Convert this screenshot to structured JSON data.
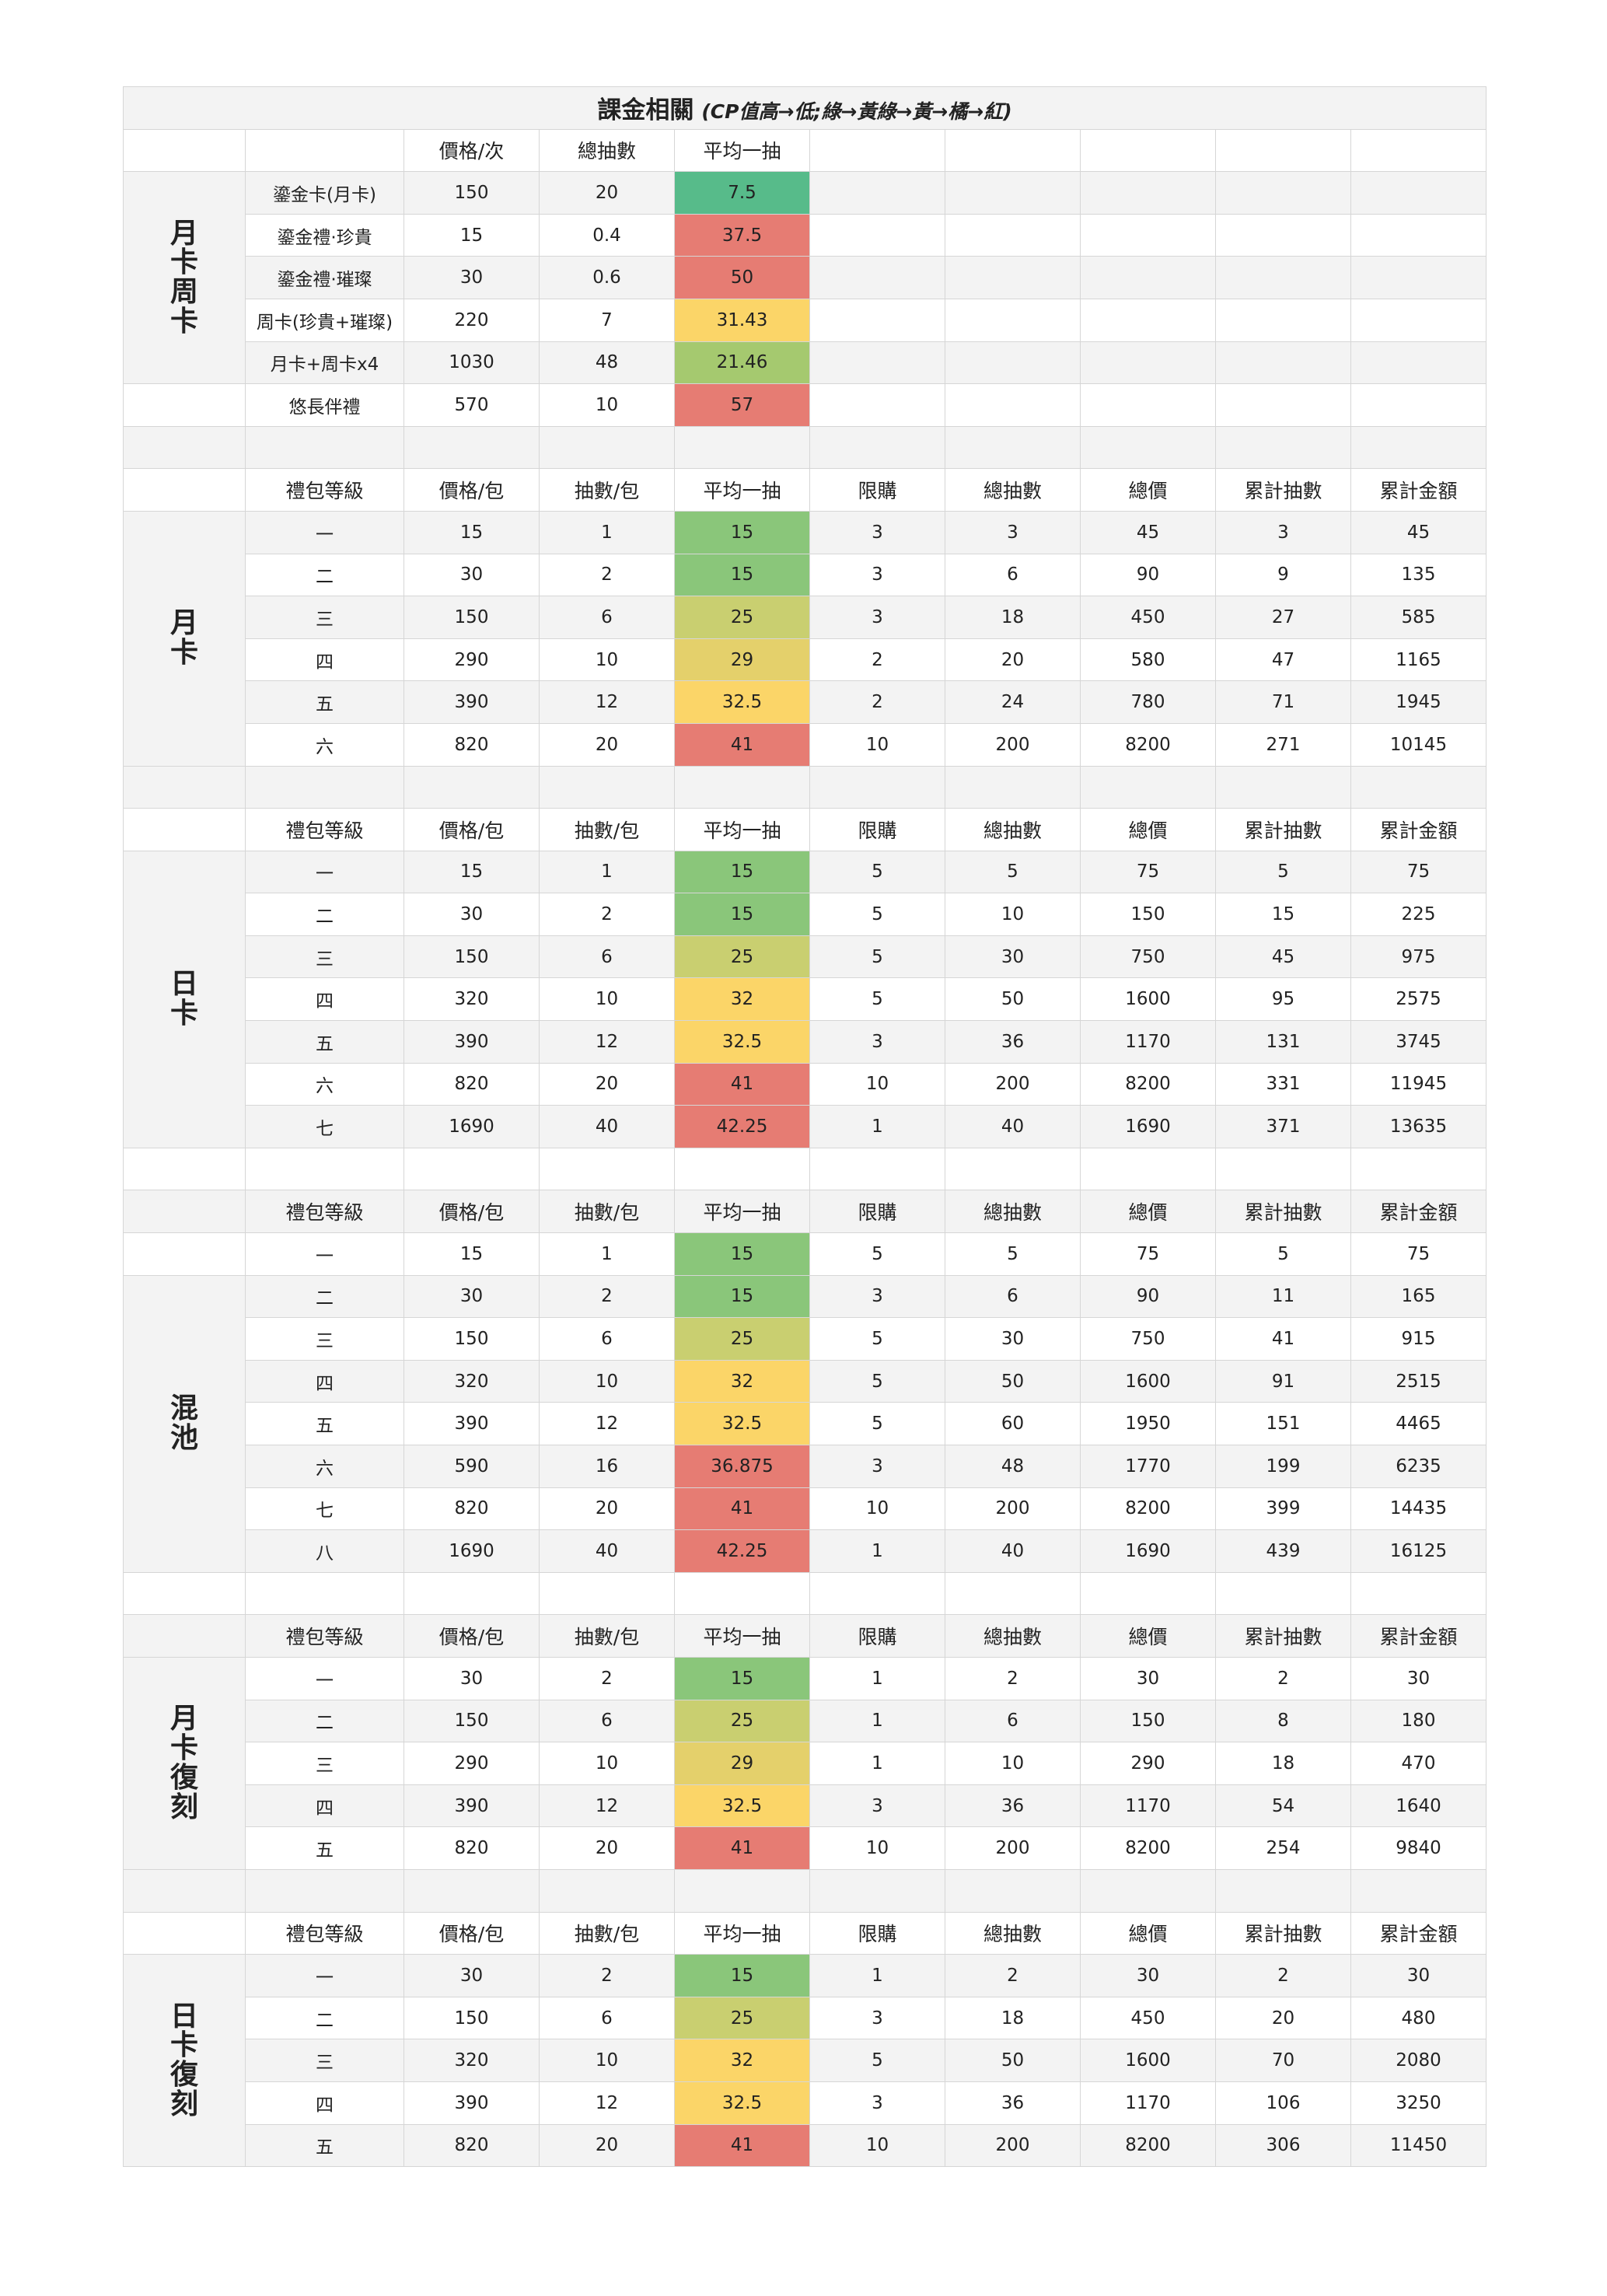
{
  "title": "課金相關",
  "subtitle": "(CP值高→低;綠→黃綠→黃→橘→紅)",
  "colors": {
    "green": "#57bb8a",
    "light_green": "#8ac67a",
    "yellow_green": "#a5c96f",
    "lime": "#c9cf70",
    "mustard": "#e4d06b",
    "yellow": "#fbd568",
    "orange": "#f3c46b",
    "red": "#e67c73",
    "stripe": "#f3f3f3",
    "grid": "#d6d6d6"
  },
  "monthly_header": [
    "",
    "價格/次",
    "總抽數",
    "平均一抽"
  ],
  "monthly_label": "月卡周卡",
  "monthly_rows": [
    {
      "name": "鎏金卡(月卡)",
      "price": "150",
      "draws": "20",
      "avg": "7.5",
      "color": "g1"
    },
    {
      "name": "鎏金禮·珍貴",
      "price": "15",
      "draws": "0.4",
      "avg": "37.5",
      "color": "r"
    },
    {
      "name": "鎏金禮·璀璨",
      "price": "30",
      "draws": "0.6",
      "avg": "50",
      "color": "r"
    },
    {
      "name": "周卡(珍貴+璀璨)",
      "price": "220",
      "draws": "7",
      "avg": "31.43",
      "color": "y2"
    },
    {
      "name": "月卡+周卡x4",
      "price": "1030",
      "draws": "48",
      "avg": "21.46",
      "color": "yg"
    }
  ],
  "extra_row": {
    "name": "悠長伴禮",
    "price": "570",
    "draws": "10",
    "avg": "57",
    "color": "r"
  },
  "pack_header": [
    "禮包等級",
    "價格/包",
    "抽數/包",
    "平均一抽",
    "限購",
    "總抽數",
    "總價",
    "累計抽數",
    "累計金額"
  ],
  "sections": [
    {
      "label": "月卡",
      "rows": [
        {
          "tier": "一",
          "price": "15",
          "draws": "1",
          "avg": "15",
          "limit": "3",
          "total_draws": "3",
          "total_price": "45",
          "cum_draws": "3",
          "cum_amount": "45",
          "color": "g2"
        },
        {
          "tier": "二",
          "price": "30",
          "draws": "2",
          "avg": "15",
          "limit": "3",
          "total_draws": "6",
          "total_price": "90",
          "cum_draws": "9",
          "cum_amount": "135",
          "color": "g2"
        },
        {
          "tier": "三",
          "price": "150",
          "draws": "6",
          "avg": "25",
          "limit": "3",
          "total_draws": "18",
          "total_price": "450",
          "cum_draws": "27",
          "cum_amount": "585",
          "color": "lime"
        },
        {
          "tier": "四",
          "price": "290",
          "draws": "10",
          "avg": "29",
          "limit": "2",
          "total_draws": "20",
          "total_price": "580",
          "cum_draws": "47",
          "cum_amount": "1165",
          "color": "y1"
        },
        {
          "tier": "五",
          "price": "390",
          "draws": "12",
          "avg": "32.5",
          "limit": "2",
          "total_draws": "24",
          "total_price": "780",
          "cum_draws": "71",
          "cum_amount": "1945",
          "color": "y2"
        },
        {
          "tier": "六",
          "price": "820",
          "draws": "20",
          "avg": "41",
          "limit": "10",
          "total_draws": "200",
          "total_price": "8200",
          "cum_draws": "271",
          "cum_amount": "10145",
          "color": "r"
        }
      ]
    },
    {
      "label": "日卡",
      "rows": [
        {
          "tier": "一",
          "price": "15",
          "draws": "1",
          "avg": "15",
          "limit": "5",
          "total_draws": "5",
          "total_price": "75",
          "cum_draws": "5",
          "cum_amount": "75",
          "color": "g2"
        },
        {
          "tier": "二",
          "price": "30",
          "draws": "2",
          "avg": "15",
          "limit": "5",
          "total_draws": "10",
          "total_price": "150",
          "cum_draws": "15",
          "cum_amount": "225",
          "color": "g2"
        },
        {
          "tier": "三",
          "price": "150",
          "draws": "6",
          "avg": "25",
          "limit": "5",
          "total_draws": "30",
          "total_price": "750",
          "cum_draws": "45",
          "cum_amount": "975",
          "color": "lime"
        },
        {
          "tier": "四",
          "price": "320",
          "draws": "10",
          "avg": "32",
          "limit": "5",
          "total_draws": "50",
          "total_price": "1600",
          "cum_draws": "95",
          "cum_amount": "2575",
          "color": "y2"
        },
        {
          "tier": "五",
          "price": "390",
          "draws": "12",
          "avg": "32.5",
          "limit": "3",
          "total_draws": "36",
          "total_price": "1170",
          "cum_draws": "131",
          "cum_amount": "3745",
          "color": "y2"
        },
        {
          "tier": "六",
          "price": "820",
          "draws": "20",
          "avg": "41",
          "limit": "10",
          "total_draws": "200",
          "total_price": "8200",
          "cum_draws": "331",
          "cum_amount": "11945",
          "color": "r"
        },
        {
          "tier": "七",
          "price": "1690",
          "draws": "40",
          "avg": "42.25",
          "limit": "1",
          "total_draws": "40",
          "total_price": "1690",
          "cum_draws": "371",
          "cum_amount": "13635",
          "color": "r"
        }
      ]
    },
    {
      "label": "混池",
      "label_skip_first": true,
      "rows": [
        {
          "tier": "一",
          "price": "15",
          "draws": "1",
          "avg": "15",
          "limit": "5",
          "total_draws": "5",
          "total_price": "75",
          "cum_draws": "5",
          "cum_amount": "75",
          "color": "g2"
        },
        {
          "tier": "二",
          "price": "30",
          "draws": "2",
          "avg": "15",
          "limit": "3",
          "total_draws": "6",
          "total_price": "90",
          "cum_draws": "11",
          "cum_amount": "165",
          "color": "g2"
        },
        {
          "tier": "三",
          "price": "150",
          "draws": "6",
          "avg": "25",
          "limit": "5",
          "total_draws": "30",
          "total_price": "750",
          "cum_draws": "41",
          "cum_amount": "915",
          "color": "lime"
        },
        {
          "tier": "四",
          "price": "320",
          "draws": "10",
          "avg": "32",
          "limit": "5",
          "total_draws": "50",
          "total_price": "1600",
          "cum_draws": "91",
          "cum_amount": "2515",
          "color": "y2"
        },
        {
          "tier": "五",
          "price": "390",
          "draws": "12",
          "avg": "32.5",
          "limit": "5",
          "total_draws": "60",
          "total_price": "1950",
          "cum_draws": "151",
          "cum_amount": "4465",
          "color": "y2"
        },
        {
          "tier": "六",
          "price": "590",
          "draws": "16",
          "avg": "36.875",
          "limit": "3",
          "total_draws": "48",
          "total_price": "1770",
          "cum_draws": "199",
          "cum_amount": "6235",
          "color": "r"
        },
        {
          "tier": "七",
          "price": "820",
          "draws": "20",
          "avg": "41",
          "limit": "10",
          "total_draws": "200",
          "total_price": "8200",
          "cum_draws": "399",
          "cum_amount": "14435",
          "color": "r"
        },
        {
          "tier": "八",
          "price": "1690",
          "draws": "40",
          "avg": "42.25",
          "limit": "1",
          "total_draws": "40",
          "total_price": "1690",
          "cum_draws": "439",
          "cum_amount": "16125",
          "color": "r"
        }
      ]
    },
    {
      "label": "月卡復刻",
      "rows": [
        {
          "tier": "一",
          "price": "30",
          "draws": "2",
          "avg": "15",
          "limit": "1",
          "total_draws": "2",
          "total_price": "30",
          "cum_draws": "2",
          "cum_amount": "30",
          "color": "g2"
        },
        {
          "tier": "二",
          "price": "150",
          "draws": "6",
          "avg": "25",
          "limit": "1",
          "total_draws": "6",
          "total_price": "150",
          "cum_draws": "8",
          "cum_amount": "180",
          "color": "lime"
        },
        {
          "tier": "三",
          "price": "290",
          "draws": "10",
          "avg": "29",
          "limit": "1",
          "total_draws": "10",
          "total_price": "290",
          "cum_draws": "18",
          "cum_amount": "470",
          "color": "y1"
        },
        {
          "tier": "四",
          "price": "390",
          "draws": "12",
          "avg": "32.5",
          "limit": "3",
          "total_draws": "36",
          "total_price": "1170",
          "cum_draws": "54",
          "cum_amount": "1640",
          "color": "y2"
        },
        {
          "tier": "五",
          "price": "820",
          "draws": "20",
          "avg": "41",
          "limit": "10",
          "total_draws": "200",
          "total_price": "8200",
          "cum_draws": "254",
          "cum_amount": "9840",
          "color": "r"
        }
      ]
    },
    {
      "label": "日卡復刻",
      "rows": [
        {
          "tier": "一",
          "price": "30",
          "draws": "2",
          "avg": "15",
          "limit": "1",
          "total_draws": "2",
          "total_price": "30",
          "cum_draws": "2",
          "cum_amount": "30",
          "color": "g2"
        },
        {
          "tier": "二",
          "price": "150",
          "draws": "6",
          "avg": "25",
          "limit": "3",
          "total_draws": "18",
          "total_price": "450",
          "cum_draws": "20",
          "cum_amount": "480",
          "color": "lime"
        },
        {
          "tier": "三",
          "price": "320",
          "draws": "10",
          "avg": "32",
          "limit": "5",
          "total_draws": "50",
          "total_price": "1600",
          "cum_draws": "70",
          "cum_amount": "2080",
          "color": "y2"
        },
        {
          "tier": "四",
          "price": "390",
          "draws": "12",
          "avg": "32.5",
          "limit": "3",
          "total_draws": "36",
          "total_price": "1170",
          "cum_draws": "106",
          "cum_amount": "3250",
          "color": "y2"
        },
        {
          "tier": "五",
          "price": "820",
          "draws": "20",
          "avg": "41",
          "limit": "10",
          "total_draws": "200",
          "total_price": "8200",
          "cum_draws": "306",
          "cum_amount": "11450",
          "color": "r"
        }
      ]
    }
  ]
}
